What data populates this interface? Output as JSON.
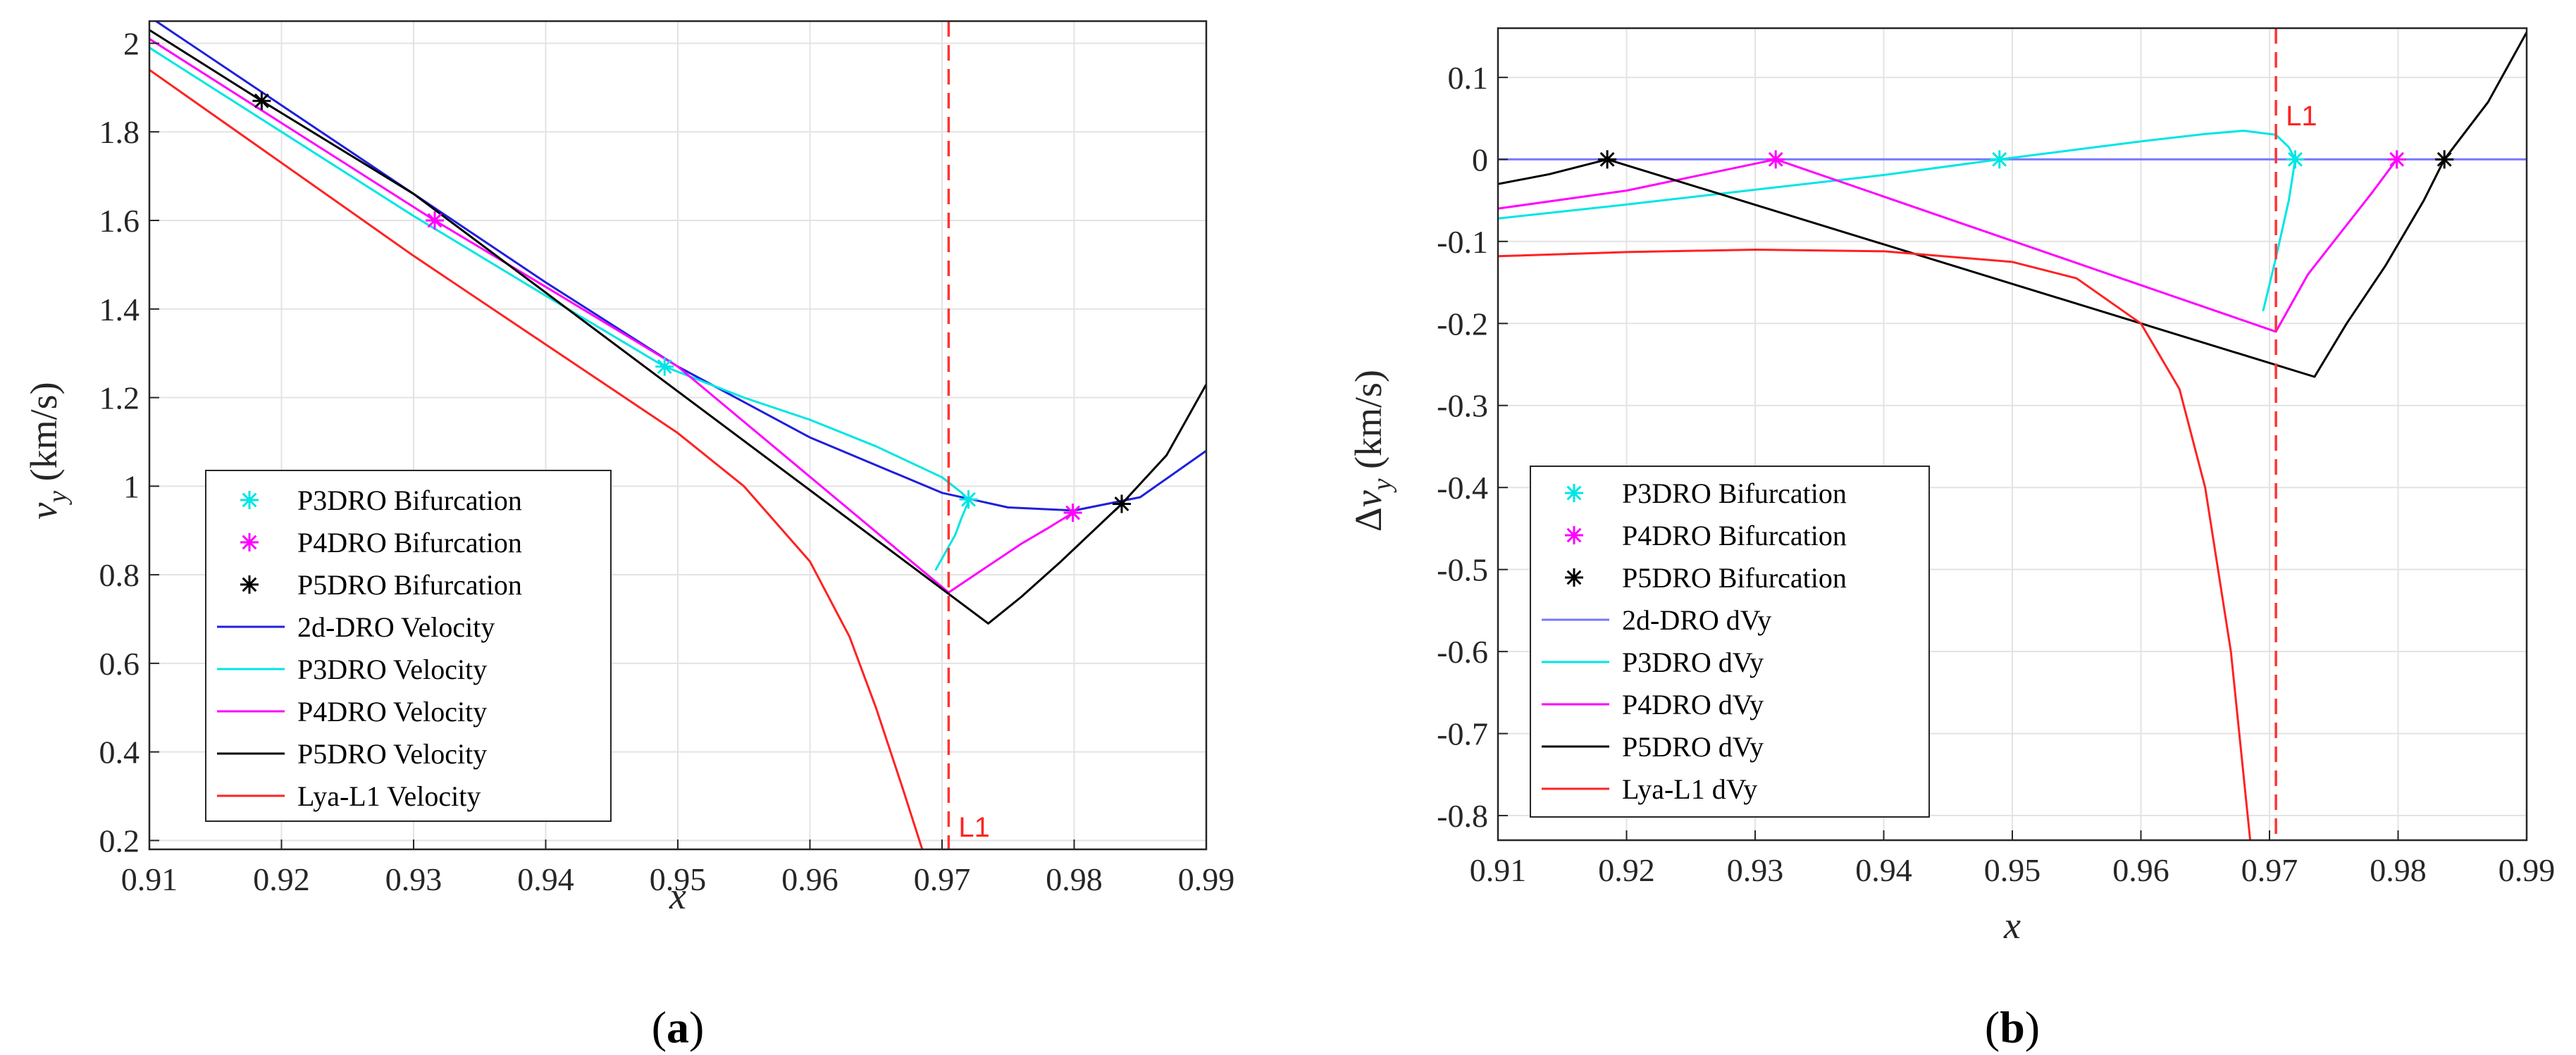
{
  "chart_data": [
    {
      "panel": "(a)",
      "type": "line",
      "xlabel": "x",
      "ylabel": "v_y (km/s)",
      "xlim": [
        0.91,
        0.99
      ],
      "ylim": [
        0.18,
        2.05
      ],
      "xticks": [
        0.91,
        0.92,
        0.93,
        0.94,
        0.95,
        0.96,
        0.97,
        0.98,
        0.99
      ],
      "xtick_labels": [
        "0.91",
        "0.92",
        "0.93",
        "0.94",
        "0.95",
        "0.96",
        "0.97",
        "0.98",
        "0.99"
      ],
      "yticks": [
        0.2,
        0.4,
        0.6,
        0.8,
        1.0,
        1.2,
        1.4,
        1.6,
        1.8,
        2.0
      ],
      "ytick_labels": [
        "0.2",
        "0.4",
        "0.6",
        "0.8",
        "1",
        "1.2",
        "1.4",
        "1.6",
        "1.8",
        "2"
      ],
      "grid": true,
      "vline": {
        "x": 0.9705,
        "label": "L1",
        "color": "#ff3333"
      },
      "series": [
        {
          "name": "P3DRO Bifurcation",
          "kind": "marker",
          "color": "#00e5e5",
          "points": [
            [
              0.949,
              1.27
            ],
            [
              0.972,
              0.97
            ]
          ]
        },
        {
          "name": "P4DRO Bifurcation",
          "kind": "marker",
          "color": "#ff00ff",
          "points": [
            [
              0.9316,
              1.6
            ],
            [
              0.9799,
              0.94
            ]
          ]
        },
        {
          "name": "P5DRO Bifurcation",
          "kind": "marker",
          "color": "#000000",
          "points": [
            [
              0.9185,
              1.87
            ],
            [
              0.9836,
              0.96
            ]
          ]
        },
        {
          "name": "2d-DRO Velocity",
          "kind": "line",
          "color": "#1f1fdd",
          "points": [
            [
              0.91,
              2.06
            ],
            [
              0.92,
              1.86
            ],
            [
              0.93,
              1.66
            ],
            [
              0.94,
              1.46
            ],
            [
              0.95,
              1.27
            ],
            [
              0.96,
              1.11
            ],
            [
              0.97,
              0.985
            ],
            [
              0.975,
              0.952
            ],
            [
              0.98,
              0.945
            ],
            [
              0.985,
              0.975
            ],
            [
              0.99,
              1.08
            ]
          ]
        },
        {
          "name": "P3DRO Velocity",
          "kind": "line",
          "color": "#00e5e5",
          "points": [
            [
              0.91,
              1.99
            ],
            [
              0.92,
              1.8
            ],
            [
              0.93,
              1.61
            ],
            [
              0.94,
              1.43
            ],
            [
              0.949,
              1.27
            ],
            [
              0.955,
              1.2
            ],
            [
              0.96,
              1.15
            ],
            [
              0.965,
              1.09
            ],
            [
              0.97,
              1.02
            ],
            [
              0.9715,
              0.985
            ],
            [
              0.972,
              0.965
            ],
            [
              0.9715,
              0.93
            ],
            [
              0.971,
              0.89
            ],
            [
              0.9695,
              0.81
            ]
          ]
        },
        {
          "name": "P4DRO Velocity",
          "kind": "line",
          "color": "#ff00ff",
          "points": [
            [
              0.91,
              2.01
            ],
            [
              0.92,
              1.82
            ],
            [
              0.9316,
              1.6
            ],
            [
              0.94,
              1.45
            ],
            [
              0.95,
              1.27
            ],
            [
              0.9705,
              0.76
            ],
            [
              0.973,
              0.81
            ],
            [
              0.976,
              0.87
            ],
            [
              0.978,
              0.905
            ],
            [
              0.9799,
              0.94
            ]
          ]
        },
        {
          "name": "P5DRO Velocity",
          "kind": "line",
          "color": "#000000",
          "points": [
            [
              0.91,
              2.03
            ],
            [
              0.9185,
              1.87
            ],
            [
              0.93,
              1.66
            ],
            [
              0.9735,
              0.69
            ],
            [
              0.976,
              0.75
            ],
            [
              0.979,
              0.83
            ],
            [
              0.9836,
              0.96
            ],
            [
              0.987,
              1.07
            ],
            [
              0.99,
              1.23
            ]
          ]
        },
        {
          "name": "Lya-L1 Velocity",
          "kind": "line",
          "color": "#ff2222",
          "points": [
            [
              0.91,
              1.94
            ],
            [
              0.92,
              1.73
            ],
            [
              0.93,
              1.52
            ],
            [
              0.94,
              1.32
            ],
            [
              0.95,
              1.12
            ],
            [
              0.955,
              1.0
            ],
            [
              0.96,
              0.83
            ],
            [
              0.963,
              0.66
            ],
            [
              0.965,
              0.5
            ],
            [
              0.967,
              0.32
            ],
            [
              0.9685,
              0.18
            ]
          ]
        }
      ],
      "legend": [
        {
          "label": "P3DRO Bifurcation",
          "kind": "marker",
          "color": "#00e5e5"
        },
        {
          "label": "P4DRO Bifurcation",
          "kind": "marker",
          "color": "#ff00ff"
        },
        {
          "label": "P5DRO Bifurcation",
          "kind": "marker",
          "color": "#000000"
        },
        {
          "label": "2d-DRO Velocity",
          "kind": "line",
          "color": "#1f1fdd"
        },
        {
          "label": "P3DRO Velocity",
          "kind": "line",
          "color": "#00e5e5"
        },
        {
          "label": "P4DRO Velocity",
          "kind": "line",
          "color": "#ff00ff"
        },
        {
          "label": "P5DRO Velocity",
          "kind": "line",
          "color": "#000000"
        },
        {
          "label": "Lya-L1 Velocity",
          "kind": "line",
          "color": "#ff2222"
        }
      ],
      "legend_position": "lower-left"
    },
    {
      "panel": "(b)",
      "type": "line",
      "xlabel": "x",
      "ylabel": "Δv_y (km/s)",
      "xlim": [
        0.91,
        0.99
      ],
      "ylim": [
        -0.83,
        0.16
      ],
      "xticks": [
        0.91,
        0.92,
        0.93,
        0.94,
        0.95,
        0.96,
        0.97,
        0.98,
        0.99
      ],
      "xtick_labels": [
        "0.91",
        "0.92",
        "0.93",
        "0.94",
        "0.95",
        "0.96",
        "0.97",
        "0.98",
        "0.99"
      ],
      "yticks": [
        -0.8,
        -0.7,
        -0.6,
        -0.5,
        -0.4,
        -0.3,
        -0.2,
        -0.1,
        0,
        0.1
      ],
      "ytick_labels": [
        "-0.8",
        "-0.7",
        "-0.6",
        "-0.5",
        "-0.4",
        "-0.3",
        "-0.2",
        "-0.1",
        "0",
        "0.1"
      ],
      "grid": true,
      "vline": {
        "x": 0.9705,
        "label": "L1",
        "color": "#ff3333"
      },
      "series": [
        {
          "name": "P3DRO Bifurcation",
          "kind": "marker",
          "color": "#00e5e5",
          "points": [
            [
              0.949,
              0
            ],
            [
              0.972,
              0
            ]
          ]
        },
        {
          "name": "P4DRO Bifurcation",
          "kind": "marker",
          "color": "#ff00ff",
          "points": [
            [
              0.9316,
              0
            ],
            [
              0.9799,
              0
            ]
          ]
        },
        {
          "name": "P5DRO Bifurcation",
          "kind": "marker",
          "color": "#000000",
          "points": [
            [
              0.9185,
              0
            ],
            [
              0.9836,
              0
            ]
          ]
        },
        {
          "name": "2d-DRO dVy",
          "kind": "line",
          "color": "#7777ff",
          "points": [
            [
              0.91,
              0
            ],
            [
              0.99,
              0
            ]
          ]
        },
        {
          "name": "P3DRO dVy",
          "kind": "line",
          "color": "#00e5e5",
          "points": [
            [
              0.91,
              -0.072
            ],
            [
              0.92,
              -0.055
            ],
            [
              0.93,
              -0.037
            ],
            [
              0.94,
              -0.019
            ],
            [
              0.949,
              0
            ],
            [
              0.955,
              0.012
            ],
            [
              0.96,
              0.022
            ],
            [
              0.965,
              0.031
            ],
            [
              0.968,
              0.035
            ],
            [
              0.9705,
              0.03
            ],
            [
              0.9715,
              0.015
            ],
            [
              0.972,
              0
            ],
            [
              0.9715,
              -0.05
            ],
            [
              0.9705,
              -0.12
            ],
            [
              0.9695,
              -0.185
            ]
          ]
        },
        {
          "name": "P4DRO dVy",
          "kind": "line",
          "color": "#ff00ff",
          "points": [
            [
              0.91,
              -0.06
            ],
            [
              0.92,
              -0.038
            ],
            [
              0.9316,
              0
            ],
            [
              0.9705,
              -0.21
            ],
            [
              0.973,
              -0.14
            ],
            [
              0.976,
              -0.08
            ],
            [
              0.978,
              -0.04
            ],
            [
              0.9799,
              0
            ]
          ]
        },
        {
          "name": "P5DRO dVy",
          "kind": "line",
          "color": "#000000",
          "points": [
            [
              0.91,
              -0.03
            ],
            [
              0.914,
              -0.018
            ],
            [
              0.9185,
              0
            ],
            [
              0.9735,
              -0.265
            ],
            [
              0.976,
              -0.2
            ],
            [
              0.979,
              -0.13
            ],
            [
              0.982,
              -0.05
            ],
            [
              0.9836,
              0
            ],
            [
              0.987,
              0.07
            ],
            [
              0.99,
              0.155
            ]
          ]
        },
        {
          "name": "Lya-L1 dVy",
          "kind": "line",
          "color": "#ff2222",
          "points": [
            [
              0.91,
              -0.118
            ],
            [
              0.92,
              -0.113
            ],
            [
              0.93,
              -0.11
            ],
            [
              0.94,
              -0.112
            ],
            [
              0.95,
              -0.125
            ],
            [
              0.955,
              -0.145
            ],
            [
              0.96,
              -0.2
            ],
            [
              0.963,
              -0.28
            ],
            [
              0.965,
              -0.4
            ],
            [
              0.967,
              -0.6
            ],
            [
              0.9685,
              -0.83
            ]
          ]
        }
      ],
      "legend": [
        {
          "label": "P3DRO Bifurcation",
          "kind": "marker",
          "color": "#00e5e5"
        },
        {
          "label": "P4DRO Bifurcation",
          "kind": "marker",
          "color": "#ff00ff"
        },
        {
          "label": "P5DRO Bifurcation",
          "kind": "marker",
          "color": "#000000"
        },
        {
          "label": "2d-DRO dVy",
          "kind": "line",
          "color": "#7777ff"
        },
        {
          "label": "P3DRO dVy",
          "kind": "line",
          "color": "#00e5e5"
        },
        {
          "label": "P4DRO dVy",
          "kind": "line",
          "color": "#ff00ff"
        },
        {
          "label": "P5DRO dVy",
          "kind": "line",
          "color": "#000000"
        },
        {
          "label": "Lya-L1 dVy",
          "kind": "line",
          "color": "#ff2222"
        }
      ],
      "legend_position": "lower-left"
    }
  ]
}
